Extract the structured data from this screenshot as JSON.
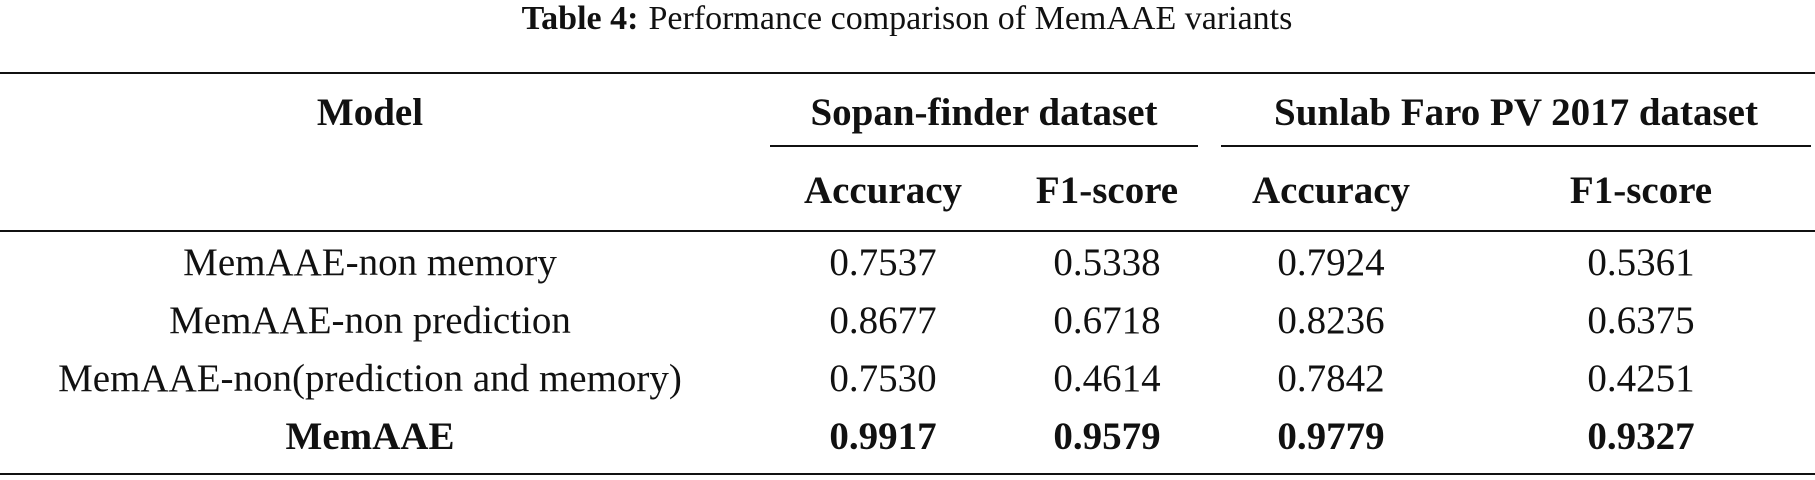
{
  "caption": {
    "label": "Table 4:",
    "text": "Performance comparison of MemAAE variants"
  },
  "table": {
    "model_header": "Model",
    "groups": [
      "Sopan-finder dataset",
      "Sunlab Faro PV 2017 dataset"
    ],
    "subheaders": [
      "Accuracy",
      "F1-score",
      "Accuracy",
      "F1-score"
    ],
    "rows": [
      [
        "MemAAE-non memory",
        "0.7537",
        "0.5338",
        "0.7924",
        "0.5361"
      ],
      [
        "MemAAE-non prediction",
        "0.8677",
        "0.6718",
        "0.8236",
        "0.6375"
      ],
      [
        "MemAAE-non(prediction and memory)",
        "0.7530",
        "0.4614",
        "0.7842",
        "0.4251"
      ],
      [
        "MemAAE",
        "0.9917",
        "0.9579",
        "0.9779",
        "0.9327"
      ]
    ]
  }
}
